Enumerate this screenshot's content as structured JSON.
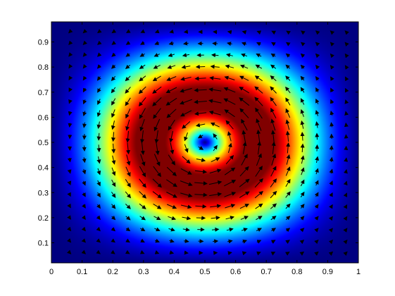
{
  "chart_data": {
    "type": "heatmap",
    "title": "",
    "xlabel": "",
    "ylabel": "",
    "xlim": [
      0,
      1
    ],
    "ylim": [
      0.02,
      0.98
    ],
    "grid": false,
    "colormap": "jet",
    "overlay": "quiver",
    "field": "circular vortex centered at (0.5, 0.5), velocity magnitude near zero at center and walls, maximum on a ring around the center",
    "rotation": "counterclockwise",
    "center": [
      0.5,
      0.5
    ],
    "x_ticks": [
      "0",
      "0.1",
      "0.2",
      "0.3",
      "0.4",
      "0.5",
      "0.6",
      "0.7",
      "0.8",
      "0.9",
      "1"
    ],
    "y_ticks": [
      "0.1",
      "0.2",
      "0.3",
      "0.4",
      "0.5",
      "0.6",
      "0.7",
      "0.8",
      "0.9"
    ],
    "quiver_grid": {
      "x_start": 0.06,
      "x_end": 0.96,
      "y_start": 0.06,
      "y_end": 0.94,
      "count": 20
    }
  }
}
